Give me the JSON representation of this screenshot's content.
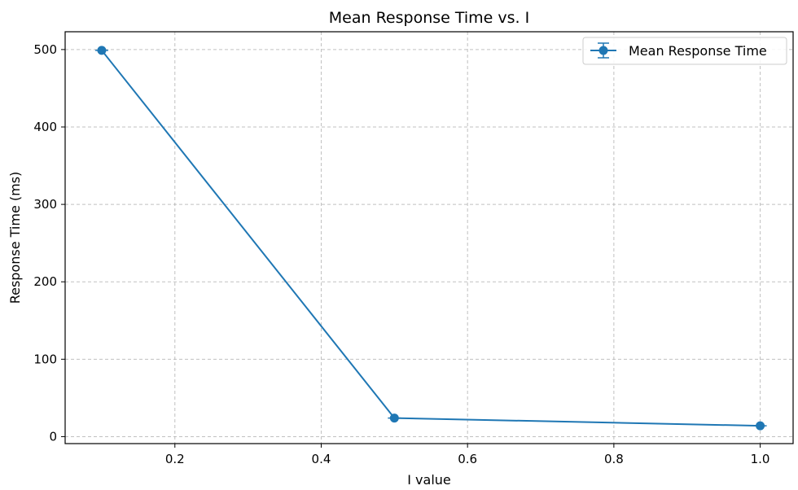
{
  "chart_data": {
    "type": "line",
    "title": "Mean Response Time vs. I",
    "xlabel": "I value",
    "ylabel": "Response Time (ms)",
    "xlim": [
      0.05,
      1.045
    ],
    "ylim": [
      -9,
      523
    ],
    "xticks": [
      0.2,
      0.4,
      0.6,
      0.8,
      1.0
    ],
    "xtick_labels": [
      "0.2",
      "0.4",
      "0.6",
      "0.8",
      "1.0"
    ],
    "yticks": [
      0,
      100,
      200,
      300,
      400,
      500
    ],
    "ytick_labels": [
      "0",
      "100",
      "200",
      "300",
      "400",
      "500"
    ],
    "grid": true,
    "grid_style": "dashed",
    "legend_position": "top-right",
    "series": [
      {
        "name": "Mean Response Time",
        "color": "#1f77b4",
        "marker": "circle",
        "error_bars": true,
        "x": [
          0.1,
          0.5,
          1.0
        ],
        "y": [
          499,
          24,
          14
        ],
        "yerr": [
          1,
          1,
          1
        ]
      }
    ]
  }
}
